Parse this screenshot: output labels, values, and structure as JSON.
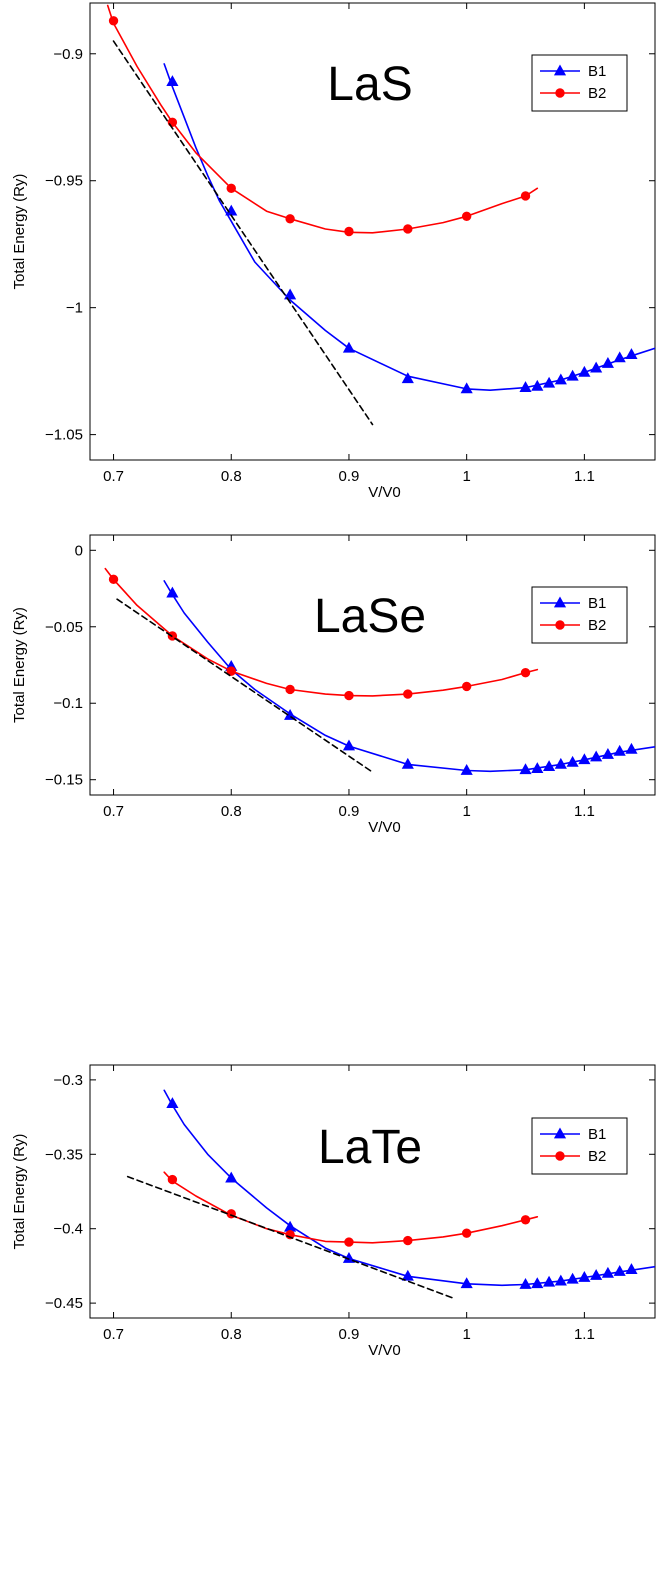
{
  "chart_data": [
    {
      "type": "line",
      "title": "LaS",
      "xlabel": "V/V0",
      "ylabel": "Total Energy   (Ry)",
      "xlim": [
        0.68,
        1.16
      ],
      "ylim": [
        -1.06,
        -0.88
      ],
      "xticks": [
        0.7,
        0.8,
        0.9,
        1,
        1.1
      ],
      "xtick_labels": [
        "0.7",
        "0.8",
        "0.9",
        "1",
        "1.1"
      ],
      "yticks": [
        -1.05,
        -1,
        -0.95,
        -0.9
      ],
      "ytick_labels": [
        "−1.05",
        "−1",
        "−0.95",
        "−0.9"
      ],
      "legend_position": "top-right",
      "series": [
        {
          "name": "B1",
          "color": "#0000ff",
          "marker": "triangle",
          "points": [
            [
              0.75,
              -0.911
            ],
            [
              0.8,
              -0.962
            ],
            [
              0.85,
              -0.995
            ],
            [
              0.9,
              -1.016
            ],
            [
              0.95,
              -1.028
            ],
            [
              1.0,
              -1.032
            ],
            [
              1.05,
              -1.0315
            ],
            [
              1.06,
              -1.031
            ],
            [
              1.07,
              -1.0298
            ],
            [
              1.08,
              -1.0285
            ],
            [
              1.09,
              -1.027
            ],
            [
              1.1,
              -1.0255
            ],
            [
              1.11,
              -1.0238
            ],
            [
              1.12,
              -1.022
            ],
            [
              1.13,
              -1.0198
            ],
            [
              1.14,
              -1.0185
            ]
          ],
          "curve": [
            [
              0.743,
              -0.904
            ],
            [
              0.75,
              -0.913
            ],
            [
              0.76,
              -0.925
            ],
            [
              0.77,
              -0.937
            ],
            [
              0.78,
              -0.948
            ],
            [
              0.79,
              -0.958
            ],
            [
              0.8,
              -0.966
            ],
            [
              0.82,
              -0.982
            ],
            [
              0.85,
              -0.997
            ],
            [
              0.88,
              -1.009
            ],
            [
              0.9,
              -1.016
            ],
            [
              0.95,
              -1.027
            ],
            [
              1.0,
              -1.032
            ],
            [
              1.02,
              -1.0325
            ],
            [
              1.05,
              -1.0315
            ],
            [
              1.08,
              -1.0285
            ],
            [
              1.1,
              -1.0255
            ],
            [
              1.13,
              -1.0205
            ],
            [
              1.16,
              -1.016
            ]
          ]
        },
        {
          "name": "B2",
          "color": "#ff0000",
          "marker": "circle",
          "points": [
            [
              0.7,
              -0.887
            ],
            [
              0.75,
              -0.927
            ],
            [
              0.8,
              -0.953
            ],
            [
              0.85,
              -0.965
            ],
            [
              0.9,
              -0.97
            ],
            [
              0.95,
              -0.969
            ],
            [
              1.0,
              -0.964
            ],
            [
              1.05,
              -0.956
            ]
          ],
          "curve": [
            [
              0.695,
              -0.881
            ],
            [
              0.7,
              -0.888
            ],
            [
              0.72,
              -0.905
            ],
            [
              0.74,
              -0.92
            ],
            [
              0.75,
              -0.927
            ],
            [
              0.77,
              -0.939
            ],
            [
              0.8,
              -0.953
            ],
            [
              0.83,
              -0.962
            ],
            [
              0.85,
              -0.965
            ],
            [
              0.88,
              -0.969
            ],
            [
              0.9,
              -0.9703
            ],
            [
              0.92,
              -0.9705
            ],
            [
              0.95,
              -0.969
            ],
            [
              0.98,
              -0.9665
            ],
            [
              1.0,
              -0.964
            ],
            [
              1.03,
              -0.959
            ],
            [
              1.05,
              -0.956
            ],
            [
              1.06,
              -0.953
            ]
          ]
        },
        {
          "name": "",
          "color": "#000000",
          "dashed": true,
          "points": [],
          "curve": [
            [
              0.7,
              -0.895
            ],
            [
              0.92,
              -1.046
            ]
          ]
        }
      ]
    },
    {
      "type": "line",
      "title": "LaSe",
      "xlabel": "V/V0",
      "ylabel": "Total Energy   (Ry)",
      "xlim": [
        0.68,
        1.16
      ],
      "ylim": [
        -0.16,
        0.01
      ],
      "xticks": [
        0.7,
        0.8,
        0.9,
        1,
        1.1
      ],
      "xtick_labels": [
        "0.7",
        "0.8",
        "0.9",
        "1",
        "1.1"
      ],
      "yticks": [
        -0.15,
        -0.1,
        -0.05,
        0
      ],
      "ytick_labels": [
        "−0.15",
        "−0.1",
        "−0.05",
        "0"
      ],
      "legend_position": "top-right",
      "series": [
        {
          "name": "B1",
          "color": "#0000ff",
          "marker": "triangle",
          "points": [
            [
              0.75,
              -0.028
            ],
            [
              0.8,
              -0.076
            ],
            [
              0.85,
              -0.108
            ],
            [
              0.9,
              -0.128
            ],
            [
              0.95,
              -0.14
            ],
            [
              1.0,
              -0.144
            ],
            [
              1.05,
              -0.1435
            ],
            [
              1.06,
              -0.1428
            ],
            [
              1.07,
              -0.1415
            ],
            [
              1.08,
              -0.14
            ],
            [
              1.09,
              -0.1387
            ],
            [
              1.1,
              -0.137
            ],
            [
              1.11,
              -0.1352
            ],
            [
              1.12,
              -0.1335
            ],
            [
              1.13,
              -0.1315
            ],
            [
              1.14,
              -0.1302
            ]
          ],
          "curve": [
            [
              0.743,
              -0.02
            ],
            [
              0.75,
              -0.029
            ],
            [
              0.76,
              -0.041
            ],
            [
              0.78,
              -0.06
            ],
            [
              0.8,
              -0.078
            ],
            [
              0.82,
              -0.091
            ],
            [
              0.85,
              -0.107
            ],
            [
              0.88,
              -0.121
            ],
            [
              0.9,
              -0.128
            ],
            [
              0.95,
              -0.14
            ],
            [
              1.0,
              -0.144
            ],
            [
              1.02,
              -0.1445
            ],
            [
              1.05,
              -0.1435
            ],
            [
              1.08,
              -0.14
            ],
            [
              1.1,
              -0.137
            ],
            [
              1.13,
              -0.132
            ],
            [
              1.16,
              -0.1285
            ]
          ]
        },
        {
          "name": "B2",
          "color": "#ff0000",
          "marker": "circle",
          "points": [
            [
              0.7,
              -0.019
            ],
            [
              0.75,
              -0.056
            ],
            [
              0.8,
              -0.079
            ],
            [
              0.85,
              -0.091
            ],
            [
              0.9,
              -0.095
            ],
            [
              0.95,
              -0.094
            ],
            [
              1.0,
              -0.089
            ],
            [
              1.05,
              -0.08
            ]
          ],
          "curve": [
            [
              0.693,
              -0.012
            ],
            [
              0.7,
              -0.019
            ],
            [
              0.72,
              -0.036
            ],
            [
              0.75,
              -0.056
            ],
            [
              0.78,
              -0.071
            ],
            [
              0.8,
              -0.079
            ],
            [
              0.83,
              -0.087
            ],
            [
              0.85,
              -0.091
            ],
            [
              0.88,
              -0.094
            ],
            [
              0.9,
              -0.095
            ],
            [
              0.92,
              -0.0952
            ],
            [
              0.95,
              -0.094
            ],
            [
              0.98,
              -0.0915
            ],
            [
              1.0,
              -0.089
            ],
            [
              1.03,
              -0.0845
            ],
            [
              1.05,
              -0.08
            ],
            [
              1.06,
              -0.078
            ]
          ]
        },
        {
          "name": "",
          "color": "#000000",
          "dashed": true,
          "points": [],
          "curve": [
            [
              0.703,
              -0.032
            ],
            [
              0.92,
              -0.145
            ]
          ]
        }
      ]
    },
    {
      "type": "line",
      "title": "LaTe",
      "xlabel": "V/V0",
      "ylabel": "Total Energy   (Ry)",
      "xlim": [
        0.68,
        1.16
      ],
      "ylim": [
        -0.46,
        -0.29
      ],
      "xticks": [
        0.7,
        0.8,
        0.9,
        1,
        1.1
      ],
      "xtick_labels": [
        "0.7",
        "0.8",
        "0.9",
        "1",
        "1.1"
      ],
      "yticks": [
        -0.45,
        -0.4,
        -0.35,
        -0.3
      ],
      "ytick_labels": [
        "−0.45",
        "−0.4",
        "−0.35",
        "−0.3"
      ],
      "legend_position": "top-right",
      "series": [
        {
          "name": "B1",
          "color": "#0000ff",
          "marker": "triangle",
          "points": [
            [
              0.75,
              -0.316
            ],
            [
              0.8,
              -0.366
            ],
            [
              0.85,
              -0.399
            ],
            [
              0.9,
              -0.42
            ],
            [
              0.95,
              -0.432
            ],
            [
              1.0,
              -0.437
            ],
            [
              1.05,
              -0.4375
            ],
            [
              1.06,
              -0.437
            ],
            [
              1.07,
              -0.436
            ],
            [
              1.08,
              -0.4352
            ],
            [
              1.09,
              -0.434
            ],
            [
              1.1,
              -0.4328
            ],
            [
              1.11,
              -0.4315
            ],
            [
              1.12,
              -0.43
            ],
            [
              1.13,
              -0.4288
            ],
            [
              1.14,
              -0.4275
            ]
          ],
          "curve": [
            [
              0.743,
              -0.307
            ],
            [
              0.75,
              -0.317
            ],
            [
              0.76,
              -0.33
            ],
            [
              0.78,
              -0.35
            ],
            [
              0.8,
              -0.366
            ],
            [
              0.83,
              -0.386
            ],
            [
              0.85,
              -0.398
            ],
            [
              0.88,
              -0.413
            ],
            [
              0.9,
              -0.42
            ],
            [
              0.95,
              -0.432
            ],
            [
              1.0,
              -0.437
            ],
            [
              1.03,
              -0.438
            ],
            [
              1.05,
              -0.4375
            ],
            [
              1.08,
              -0.4352
            ],
            [
              1.1,
              -0.4328
            ],
            [
              1.13,
              -0.429
            ],
            [
              1.16,
              -0.4255
            ]
          ]
        },
        {
          "name": "B2",
          "color": "#ff0000",
          "marker": "circle",
          "points": [
            [
              0.75,
              -0.367
            ],
            [
              0.8,
              -0.39
            ],
            [
              0.85,
              -0.404
            ],
            [
              0.9,
              -0.409
            ],
            [
              0.95,
              -0.408
            ],
            [
              1.0,
              -0.403
            ],
            [
              1.05,
              -0.394
            ]
          ],
          "curve": [
            [
              0.743,
              -0.362
            ],
            [
              0.75,
              -0.368
            ],
            [
              0.77,
              -0.378
            ],
            [
              0.8,
              -0.391
            ],
            [
              0.83,
              -0.4
            ],
            [
              0.85,
              -0.404
            ],
            [
              0.88,
              -0.4085
            ],
            [
              0.9,
              -0.409
            ],
            [
              0.92,
              -0.4095
            ],
            [
              0.95,
              -0.408
            ],
            [
              0.98,
              -0.4055
            ],
            [
              1.0,
              -0.403
            ],
            [
              1.03,
              -0.398
            ],
            [
              1.05,
              -0.394
            ],
            [
              1.06,
              -0.392
            ]
          ]
        },
        {
          "name": "",
          "color": "#000000",
          "dashed": true,
          "points": [],
          "curve": [
            [
              0.712,
              -0.365
            ],
            [
              0.99,
              -0.447
            ]
          ]
        }
      ]
    }
  ]
}
